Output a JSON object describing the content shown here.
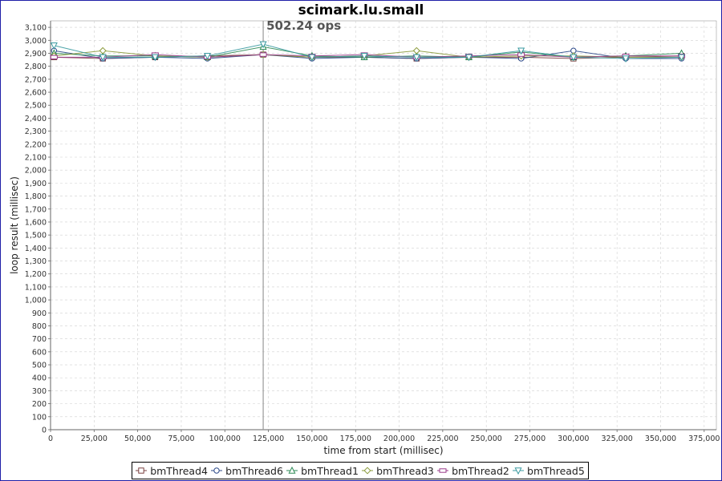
{
  "chart_data": {
    "type": "scatter",
    "title": "scimark.lu.small",
    "xlabel": "time from start (millisec)",
    "ylabel": "loop result (millisec)",
    "xlim": [
      0,
      382000
    ],
    "ylim": [
      0,
      3150
    ],
    "x_ticks": [
      0,
      25000,
      50000,
      75000,
      100000,
      125000,
      150000,
      175000,
      200000,
      225000,
      250000,
      275000,
      300000,
      325000,
      350000,
      375000
    ],
    "x_tick_labels": [
      "0",
      "25,000",
      "50,000",
      "75,000",
      "100,000",
      "125,000",
      "150,000",
      "175,000",
      "200,000",
      "225,000",
      "250,000",
      "275,000",
      "300,000",
      "325,000",
      "350,000",
      "375,000"
    ],
    "y_ticks": [
      0,
      100,
      200,
      300,
      400,
      500,
      600,
      700,
      800,
      900,
      1000,
      1100,
      1200,
      1300,
      1400,
      1500,
      1600,
      1700,
      1800,
      1900,
      2000,
      2100,
      2200,
      2300,
      2400,
      2500,
      2600,
      2700,
      2800,
      2900,
      3000,
      3100
    ],
    "y_tick_labels": [
      "0",
      "100",
      "200",
      "300",
      "400",
      "500",
      "600",
      "700",
      "800",
      "900",
      "1,000",
      "1,100",
      "1,200",
      "1,300",
      "1,400",
      "1,500",
      "1,600",
      "1,700",
      "1,800",
      "1,900",
      "2,000",
      "2,100",
      "2,200",
      "2,300",
      "2,400",
      "2,500",
      "2,600",
      "2,700",
      "2,800",
      "2,900",
      "3,000",
      "3,100"
    ],
    "grid": true,
    "legend_position": "bottom",
    "annotation": {
      "x": 122000,
      "text": "502.24 ops"
    },
    "series": [
      {
        "name": "bmThread4",
        "marker": "square",
        "color": "#7a4040",
        "x": [
          2000,
          30000,
          60000,
          90000,
          122000,
          150000,
          180000,
          210000,
          240000,
          270000,
          300000,
          330000,
          362000
        ],
        "y": [
          2870,
          2860,
          2870,
          2880,
          2890,
          2870,
          2870,
          2860,
          2870,
          2870,
          2860,
          2870,
          2880
        ]
      },
      {
        "name": "bmThread6",
        "marker": "circle",
        "color": "#2c4a8a",
        "x": [
          2000,
          30000,
          60000,
          90000,
          122000,
          150000,
          180000,
          210000,
          240000,
          270000,
          300000,
          330000,
          362000
        ],
        "y": [
          2920,
          2860,
          2870,
          2860,
          2890,
          2860,
          2870,
          2860,
          2870,
          2860,
          2920,
          2860,
          2860
        ]
      },
      {
        "name": "bmThread1",
        "marker": "triangle-up",
        "color": "#2e8b57",
        "x": [
          2000,
          30000,
          60000,
          90000,
          122000,
          150000,
          180000,
          210000,
          240000,
          270000,
          300000,
          330000,
          362000
        ],
        "y": [
          2900,
          2880,
          2880,
          2870,
          2950,
          2880,
          2870,
          2880,
          2870,
          2910,
          2870,
          2880,
          2900
        ]
      },
      {
        "name": "bmThread3",
        "marker": "diamond",
        "color": "#8a9a3a",
        "x": [
          2000,
          30000,
          60000,
          90000,
          122000,
          150000,
          180000,
          210000,
          240000,
          270000,
          300000,
          330000,
          362000
        ],
        "y": [
          2880,
          2920,
          2880,
          2870,
          2890,
          2870,
          2880,
          2920,
          2870,
          2880,
          2880,
          2870,
          2870
        ]
      },
      {
        "name": "bmThread2",
        "marker": "rect-h",
        "color": "#9a3a8a",
        "x": [
          2000,
          30000,
          60000,
          90000,
          122000,
          150000,
          180000,
          210000,
          240000,
          270000,
          300000,
          330000,
          362000
        ],
        "y": [
          2870,
          2870,
          2890,
          2870,
          2890,
          2880,
          2890,
          2870,
          2880,
          2890,
          2870,
          2880,
          2880
        ]
      },
      {
        "name": "bmThread5",
        "marker": "triangle-down",
        "color": "#3a9aa0",
        "x": [
          2000,
          30000,
          60000,
          90000,
          122000,
          150000,
          180000,
          210000,
          240000,
          270000,
          300000,
          330000,
          362000
        ],
        "y": [
          2960,
          2870,
          2870,
          2880,
          2970,
          2870,
          2880,
          2870,
          2870,
          2920,
          2870,
          2860,
          2870
        ]
      }
    ]
  }
}
